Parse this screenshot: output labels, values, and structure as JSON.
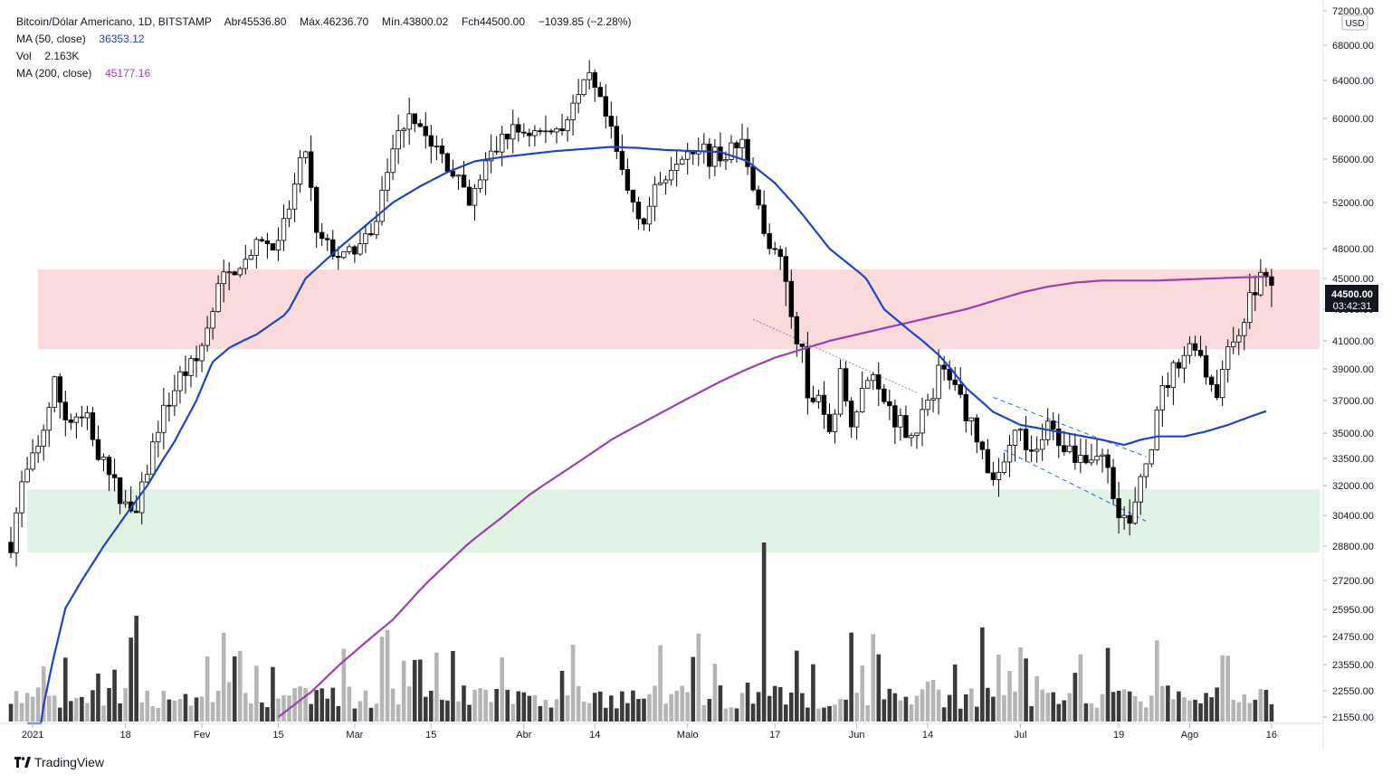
{
  "legend": {
    "symbol": "Bitcoin/Dólar Americano, 1D, BITSTAMP",
    "ohlc": [
      {
        "label": "Abr",
        "value": "45536.80"
      },
      {
        "label": "Máx.",
        "value": "46236.70"
      },
      {
        "label": "Mín.",
        "value": "43800.02"
      },
      {
        "label": "Fch",
        "value": "44500.00"
      }
    ],
    "change": "−1039.85 (−2.28%)",
    "ma50_label": "MA (50, close)",
    "ma50_value": "36353.12",
    "vol_label": "Vol",
    "vol_value": "2.163K",
    "ma200_label": "MA (200, close)",
    "ma200_value": "45177.16"
  },
  "axis": {
    "currency": "USD",
    "price_badge": "44500.00",
    "countdown": "03:42:31"
  },
  "footer": {
    "logo_text": "TradingView"
  },
  "colors": {
    "ma50": "#1e45c4",
    "ma200": "#9c3fb3",
    "resistance_zone": "#f8cfcf",
    "support_zone": "#d4eed6",
    "candle_up": "#ffffff",
    "candle_down": "#000000",
    "volume_up": "#b5b5b5",
    "volume_down": "#3a3a3a"
  },
  "chart_data": {
    "type": "candlestick",
    "title": "Bitcoin/Dólar Americano, 1D, BITSTAMP",
    "y_ticks": [
      72000,
      68000,
      64000,
      60000,
      56000,
      52000,
      48000,
      45000,
      43500,
      41000,
      39000,
      37000,
      35000,
      33500,
      32000,
      30400,
      28800,
      27200,
      25950,
      24750,
      23550,
      22550,
      21550
    ],
    "y_tick_labels": [
      "72000.00",
      "68000.00",
      "64000.00",
      "60000.00",
      "56000.00",
      "52000.00",
      "48000.00",
      "45000.00",
      "43500.00",
      "41000.00",
      "39000.00",
      "37000.00",
      "35000.00",
      "33500.00",
      "32000.00",
      "30400.00",
      "28800.00",
      "27200.00",
      "25950.00",
      "24750.00",
      "23550.00",
      "22550.00",
      "21550.00"
    ],
    "x_tick_labels": [
      {
        "label": "2021",
        "day": 4
      },
      {
        "label": "18",
        "day": 21
      },
      {
        "label": "Fev",
        "day": 35
      },
      {
        "label": "15",
        "day": 49
      },
      {
        "label": "Mar",
        "day": 63
      },
      {
        "label": "15",
        "day": 77
      },
      {
        "label": "Abr",
        "day": 94
      },
      {
        "label": "14",
        "day": 107
      },
      {
        "label": "Maio",
        "day": 124
      },
      {
        "label": "17",
        "day": 140
      },
      {
        "label": "Jun",
        "day": 155
      },
      {
        "label": "14",
        "day": 168
      },
      {
        "label": "Jul",
        "day": 185
      },
      {
        "label": "19",
        "day": 203
      },
      {
        "label": "Ago",
        "day": 216
      },
      {
        "label": "16",
        "day": 231
      }
    ],
    "zones": [
      {
        "name": "resistance",
        "from": 40400,
        "to": 45900,
        "start_day": 5
      },
      {
        "name": "support",
        "from": 28500,
        "to": 31800,
        "start_day": 3
      }
    ],
    "close_anchors": [
      [
        0,
        29000
      ],
      [
        2,
        32000
      ],
      [
        5,
        34000
      ],
      [
        8,
        38000
      ],
      [
        10,
        36000
      ],
      [
        14,
        35700
      ],
      [
        17,
        33000
      ],
      [
        20,
        31500
      ],
      [
        23,
        30400
      ],
      [
        27,
        35500
      ],
      [
        31,
        38500
      ],
      [
        34,
        39500
      ],
      [
        38,
        44500
      ],
      [
        42,
        46500
      ],
      [
        46,
        48500
      ],
      [
        49,
        48000
      ],
      [
        54,
        57000
      ],
      [
        56,
        48900
      ],
      [
        61,
        47000
      ],
      [
        63,
        48000
      ],
      [
        66,
        48800
      ],
      [
        70,
        57000
      ],
      [
        73,
        61000
      ],
      [
        77,
        57500
      ],
      [
        81,
        55000
      ],
      [
        84,
        51500
      ],
      [
        87,
        55500
      ],
      [
        91,
        58600
      ],
      [
        94,
        58800
      ],
      [
        98,
        58500
      ],
      [
        102,
        60000
      ],
      [
        106,
        64000
      ],
      [
        109,
        60000
      ],
      [
        113,
        53000
      ],
      [
        116,
        50500
      ],
      [
        119,
        54000
      ],
      [
        122,
        56500
      ],
      [
        125,
        57500
      ],
      [
        128,
        56000
      ],
      [
        131,
        56700
      ],
      [
        134,
        57500
      ],
      [
        136,
        54000
      ],
      [
        138,
        49000
      ],
      [
        141,
        46500
      ],
      [
        143,
        43000
      ],
      [
        145,
        40000
      ],
      [
        146,
        36700
      ],
      [
        148,
        37500
      ],
      [
        150,
        35000
      ],
      [
        152,
        38500
      ],
      [
        154,
        36000
      ],
      [
        157,
        38500
      ],
      [
        160,
        37000
      ],
      [
        162,
        36000
      ],
      [
        165,
        35000
      ],
      [
        168,
        36500
      ],
      [
        170,
        39000
      ],
      [
        173,
        38000
      ],
      [
        176,
        35500
      ],
      [
        179,
        33000
      ],
      [
        181,
        32200
      ],
      [
        184,
        35500
      ],
      [
        187,
        33500
      ],
      [
        190,
        35300
      ],
      [
        194,
        34000
      ],
      [
        197,
        33600
      ],
      [
        200,
        33800
      ],
      [
        203,
        30800
      ],
      [
        205,
        29800
      ],
      [
        207,
        32000
      ],
      [
        209,
        34500
      ],
      [
        211,
        37500
      ],
      [
        214,
        39700
      ],
      [
        217,
        41000
      ],
      [
        219,
        38800
      ],
      [
        221,
        37700
      ],
      [
        223,
        40000
      ],
      [
        225,
        42000
      ],
      [
        227,
        43800
      ],
      [
        229,
        45500
      ],
      [
        231,
        44500
      ]
    ],
    "ma50_anchors": [
      [
        3,
        17000
      ],
      [
        6,
        22000
      ],
      [
        10,
        26000
      ],
      [
        15,
        28000
      ],
      [
        20,
        30000
      ],
      [
        25,
        32000
      ],
      [
        30,
        34500
      ],
      [
        34,
        37000
      ],
      [
        37,
        39500
      ],
      [
        40,
        40500
      ],
      [
        45,
        41500
      ],
      [
        50,
        43000
      ],
      [
        55,
        45500
      ],
      [
        60,
        48000
      ],
      [
        65,
        50000
      ],
      [
        70,
        52000
      ],
      [
        75,
        53500
      ],
      [
        80,
        54800
      ],
      [
        85,
        55800
      ],
      [
        90,
        56200
      ],
      [
        95,
        56500
      ],
      [
        100,
        56800
      ],
      [
        105,
        57000
      ],
      [
        110,
        57200
      ],
      [
        115,
        57100
      ],
      [
        120,
        56900
      ],
      [
        125,
        56800
      ],
      [
        130,
        56700
      ],
      [
        135,
        55800
      ],
      [
        140,
        53800
      ],
      [
        145,
        51000
      ],
      [
        150,
        48000
      ],
      [
        155,
        45800
      ],
      [
        160,
        43500
      ],
      [
        165,
        41700
      ],
      [
        170,
        40000
      ],
      [
        175,
        37800
      ],
      [
        180,
        36300
      ],
      [
        185,
        35500
      ],
      [
        190,
        35200
      ],
      [
        195,
        34900
      ],
      [
        200,
        34600
      ],
      [
        204,
        34300
      ],
      [
        207,
        34600
      ],
      [
        210,
        34800
      ],
      [
        215,
        34800
      ],
      [
        219,
        35100
      ],
      [
        223,
        35500
      ],
      [
        227,
        36000
      ],
      [
        230,
        36350
      ]
    ],
    "ma200_anchors": [
      [
        49,
        21550
      ],
      [
        55,
        22500
      ],
      [
        60,
        23500
      ],
      [
        65,
        24500
      ],
      [
        70,
        25500
      ],
      [
        75,
        26800
      ],
      [
        80,
        28000
      ],
      [
        85,
        29200
      ],
      [
        90,
        30300
      ],
      [
        95,
        31500
      ],
      [
        100,
        32500
      ],
      [
        105,
        33500
      ],
      [
        110,
        34600
      ],
      [
        115,
        35500
      ],
      [
        120,
        36400
      ],
      [
        125,
        37300
      ],
      [
        130,
        38200
      ],
      [
        135,
        39000
      ],
      [
        140,
        39800
      ],
      [
        145,
        40400
      ],
      [
        150,
        41000
      ],
      [
        155,
        41500
      ],
      [
        160,
        42000
      ],
      [
        165,
        42500
      ],
      [
        170,
        43000
      ],
      [
        175,
        43500
      ],
      [
        180,
        43900
      ],
      [
        185,
        44300
      ],
      [
        190,
        44600
      ],
      [
        195,
        44800
      ],
      [
        200,
        44900
      ],
      [
        205,
        44900
      ],
      [
        210,
        44900
      ],
      [
        215,
        44950
      ],
      [
        220,
        45000
      ],
      [
        225,
        45100
      ],
      [
        230,
        45177
      ]
    ],
    "volume_spikes": [
      [
        23,
        3.9
      ],
      [
        41,
        2.4
      ],
      [
        138,
        6.6
      ],
      [
        42,
        2.6
      ]
    ],
    "trendlines": [
      {
        "name": "channel-upper",
        "from": [
          180,
          37200
        ],
        "to": [
          208,
          33600
        ],
        "style": "dashed"
      },
      {
        "name": "channel-lower",
        "from": [
          182,
          34000
        ],
        "to": [
          208,
          30100
        ],
        "style": "dashed"
      },
      {
        "name": "descending-resistance",
        "from": [
          136,
          42700
        ],
        "to": [
          166,
          37500
        ],
        "style": "dotted"
      }
    ]
  }
}
